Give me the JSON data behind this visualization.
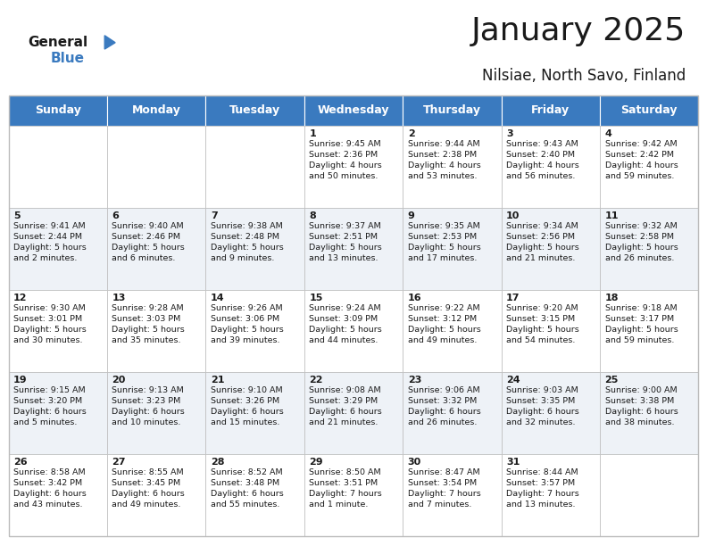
{
  "title": "January 2025",
  "subtitle": "Nilsiae, North Savo, Finland",
  "header_color": "#3a7abf",
  "header_text_color": "#ffffff",
  "bg_color": "#ffffff",
  "alt_row_color": "#eef2f7",
  "grid_color": "#bbbbbb",
  "text_color": "#1a1a1a",
  "days_of_week": [
    "Sunday",
    "Monday",
    "Tuesday",
    "Wednesday",
    "Thursday",
    "Friday",
    "Saturday"
  ],
  "logo_general_color": "#1a1a1a",
  "logo_blue_color": "#3a7abf",
  "logo_triangle_color": "#3a7abf",
  "title_fontsize": 26,
  "subtitle_fontsize": 12,
  "header_fontsize": 9,
  "day_num_fontsize": 8,
  "info_fontsize": 6.8,
  "weeks": [
    [
      {
        "day": "",
        "info": ""
      },
      {
        "day": "",
        "info": ""
      },
      {
        "day": "",
        "info": ""
      },
      {
        "day": "1",
        "info": "Sunrise: 9:45 AM\nSunset: 2:36 PM\nDaylight: 4 hours\nand 50 minutes."
      },
      {
        "day": "2",
        "info": "Sunrise: 9:44 AM\nSunset: 2:38 PM\nDaylight: 4 hours\nand 53 minutes."
      },
      {
        "day": "3",
        "info": "Sunrise: 9:43 AM\nSunset: 2:40 PM\nDaylight: 4 hours\nand 56 minutes."
      },
      {
        "day": "4",
        "info": "Sunrise: 9:42 AM\nSunset: 2:42 PM\nDaylight: 4 hours\nand 59 minutes."
      }
    ],
    [
      {
        "day": "5",
        "info": "Sunrise: 9:41 AM\nSunset: 2:44 PM\nDaylight: 5 hours\nand 2 minutes."
      },
      {
        "day": "6",
        "info": "Sunrise: 9:40 AM\nSunset: 2:46 PM\nDaylight: 5 hours\nand 6 minutes."
      },
      {
        "day": "7",
        "info": "Sunrise: 9:38 AM\nSunset: 2:48 PM\nDaylight: 5 hours\nand 9 minutes."
      },
      {
        "day": "8",
        "info": "Sunrise: 9:37 AM\nSunset: 2:51 PM\nDaylight: 5 hours\nand 13 minutes."
      },
      {
        "day": "9",
        "info": "Sunrise: 9:35 AM\nSunset: 2:53 PM\nDaylight: 5 hours\nand 17 minutes."
      },
      {
        "day": "10",
        "info": "Sunrise: 9:34 AM\nSunset: 2:56 PM\nDaylight: 5 hours\nand 21 minutes."
      },
      {
        "day": "11",
        "info": "Sunrise: 9:32 AM\nSunset: 2:58 PM\nDaylight: 5 hours\nand 26 minutes."
      }
    ],
    [
      {
        "day": "12",
        "info": "Sunrise: 9:30 AM\nSunset: 3:01 PM\nDaylight: 5 hours\nand 30 minutes."
      },
      {
        "day": "13",
        "info": "Sunrise: 9:28 AM\nSunset: 3:03 PM\nDaylight: 5 hours\nand 35 minutes."
      },
      {
        "day": "14",
        "info": "Sunrise: 9:26 AM\nSunset: 3:06 PM\nDaylight: 5 hours\nand 39 minutes."
      },
      {
        "day": "15",
        "info": "Sunrise: 9:24 AM\nSunset: 3:09 PM\nDaylight: 5 hours\nand 44 minutes."
      },
      {
        "day": "16",
        "info": "Sunrise: 9:22 AM\nSunset: 3:12 PM\nDaylight: 5 hours\nand 49 minutes."
      },
      {
        "day": "17",
        "info": "Sunrise: 9:20 AM\nSunset: 3:15 PM\nDaylight: 5 hours\nand 54 minutes."
      },
      {
        "day": "18",
        "info": "Sunrise: 9:18 AM\nSunset: 3:17 PM\nDaylight: 5 hours\nand 59 minutes."
      }
    ],
    [
      {
        "day": "19",
        "info": "Sunrise: 9:15 AM\nSunset: 3:20 PM\nDaylight: 6 hours\nand 5 minutes."
      },
      {
        "day": "20",
        "info": "Sunrise: 9:13 AM\nSunset: 3:23 PM\nDaylight: 6 hours\nand 10 minutes."
      },
      {
        "day": "21",
        "info": "Sunrise: 9:10 AM\nSunset: 3:26 PM\nDaylight: 6 hours\nand 15 minutes."
      },
      {
        "day": "22",
        "info": "Sunrise: 9:08 AM\nSunset: 3:29 PM\nDaylight: 6 hours\nand 21 minutes."
      },
      {
        "day": "23",
        "info": "Sunrise: 9:06 AM\nSunset: 3:32 PM\nDaylight: 6 hours\nand 26 minutes."
      },
      {
        "day": "24",
        "info": "Sunrise: 9:03 AM\nSunset: 3:35 PM\nDaylight: 6 hours\nand 32 minutes."
      },
      {
        "day": "25",
        "info": "Sunrise: 9:00 AM\nSunset: 3:38 PM\nDaylight: 6 hours\nand 38 minutes."
      }
    ],
    [
      {
        "day": "26",
        "info": "Sunrise: 8:58 AM\nSunset: 3:42 PM\nDaylight: 6 hours\nand 43 minutes."
      },
      {
        "day": "27",
        "info": "Sunrise: 8:55 AM\nSunset: 3:45 PM\nDaylight: 6 hours\nand 49 minutes."
      },
      {
        "day": "28",
        "info": "Sunrise: 8:52 AM\nSunset: 3:48 PM\nDaylight: 6 hours\nand 55 minutes."
      },
      {
        "day": "29",
        "info": "Sunrise: 8:50 AM\nSunset: 3:51 PM\nDaylight: 7 hours\nand 1 minute."
      },
      {
        "day": "30",
        "info": "Sunrise: 8:47 AM\nSunset: 3:54 PM\nDaylight: 7 hours\nand 7 minutes."
      },
      {
        "day": "31",
        "info": "Sunrise: 8:44 AM\nSunset: 3:57 PM\nDaylight: 7 hours\nand 13 minutes."
      },
      {
        "day": "",
        "info": ""
      }
    ]
  ]
}
